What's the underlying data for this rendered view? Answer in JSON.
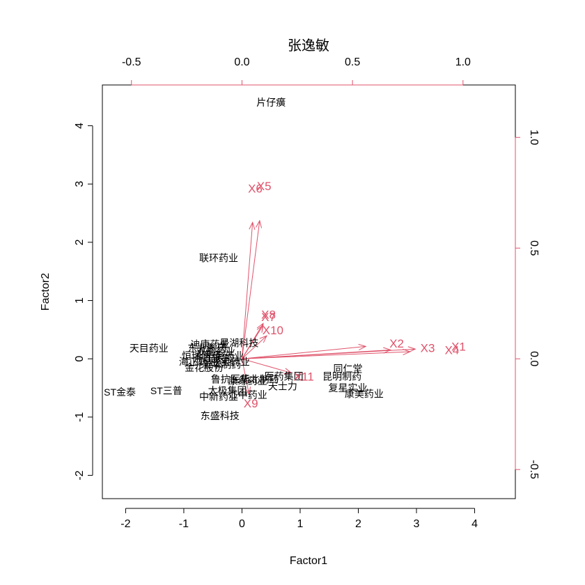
{
  "chart_data": {
    "type": "scatter",
    "subtype": "biplot",
    "title": "张逸敏",
    "xlabel": "Factor1",
    "ylabel": "Factor2",
    "xlim": [
      -2.4,
      4.7
    ],
    "ylim": [
      -2.4,
      4.7
    ],
    "x_ticks": [
      -2,
      -1,
      0,
      1,
      2,
      3,
      4
    ],
    "y_ticks": [
      -2,
      -1,
      0,
      1,
      2,
      3,
      4
    ],
    "top_ticks": [
      -0.5,
      0.0,
      0.5,
      1.0
    ],
    "right_ticks": [
      -0.5,
      0.0,
      0.5,
      1.0
    ],
    "loading_scale": 3.8,
    "colors": {
      "points": "#000000",
      "loadings": "#DF536B",
      "axes": "#000000"
    },
    "points": [
      {
        "label": "片仔癀",
        "x": 0.5,
        "y": 4.4
      },
      {
        "label": "联环药业",
        "x": -0.4,
        "y": 1.73
      },
      {
        "label": "天目药业",
        "x": -1.6,
        "y": 0.18
      },
      {
        "label": "迪康药业",
        "x": -0.55,
        "y": 0.25
      },
      {
        "label": "星湖科技",
        "x": -0.05,
        "y": 0.27
      },
      {
        "label": "同仁堂",
        "x": 1.82,
        "y": -0.17
      },
      {
        "label": "昆明制药",
        "x": 1.72,
        "y": -0.3
      },
      {
        "label": "复星实业",
        "x": 1.82,
        "y": -0.5
      },
      {
        "label": "康美药业",
        "x": 2.1,
        "y": -0.6
      },
      {
        "label": "天士力",
        "x": 0.7,
        "y": -0.47
      },
      {
        "label": "医药集团",
        "x": 0.72,
        "y": -0.3
      },
      {
        "label": "中新药业",
        "x": -0.4,
        "y": -0.65
      },
      {
        "label": "太极集团",
        "x": -0.25,
        "y": -0.55
      },
      {
        "label": "东盛科技",
        "x": -0.38,
        "y": -0.98
      },
      {
        "label": "ST金泰",
        "x": -2.1,
        "y": -0.57
      },
      {
        "label": "ST三普",
        "x": -1.3,
        "y": -0.55
      },
      {
        "label": "金花股份",
        "x": -0.65,
        "y": -0.15
      },
      {
        "label": "康缘药业",
        "x": 0.1,
        "y": -0.38
      },
      {
        "label": "鲁抗医药",
        "x": -0.2,
        "y": -0.35
      },
      {
        "label": "江中药业",
        "x": 0.1,
        "y": -0.62
      },
      {
        "label": "华北制药",
        "x": 0.3,
        "y": -0.35
      },
      {
        "label": "浙江医药",
        "x": -0.5,
        "y": 0.0
      },
      {
        "label": "恒瑞医药",
        "x": -0.7,
        "y": 0.05
      },
      {
        "label": "双鹤药业",
        "x": -0.45,
        "y": 0.12
      },
      {
        "label": "海正药业",
        "x": -0.75,
        "y": -0.05
      },
      {
        "label": "新华制药",
        "x": -0.35,
        "y": -0.1
      },
      {
        "label": "东北制药",
        "x": -0.6,
        "y": 0.18
      },
      {
        "label": "华海药业",
        "x": -0.3,
        "y": 0.05
      },
      {
        "label": "亚宝药业",
        "x": -0.2,
        "y": -0.05
      }
    ],
    "loadings": [
      {
        "name": "X1",
        "x": 0.98,
        "y": 0.055
      },
      {
        "name": "X2",
        "x": 0.7,
        "y": 0.07
      },
      {
        "name": "X3",
        "x": 0.84,
        "y": 0.05
      },
      {
        "name": "X4",
        "x": 0.95,
        "y": 0.04
      },
      {
        "name": "X5",
        "x": 0.1,
        "y": 0.78
      },
      {
        "name": "X6",
        "x": 0.06,
        "y": 0.77
      },
      {
        "name": "X7",
        "x": 0.12,
        "y": 0.19
      },
      {
        "name": "X8",
        "x": 0.12,
        "y": 0.2
      },
      {
        "name": "X9",
        "x": 0.04,
        "y": -0.2
      },
      {
        "name": "X10",
        "x": 0.14,
        "y": 0.13
      },
      {
        "name": "X11",
        "x": 0.28,
        "y": -0.08
      }
    ]
  }
}
